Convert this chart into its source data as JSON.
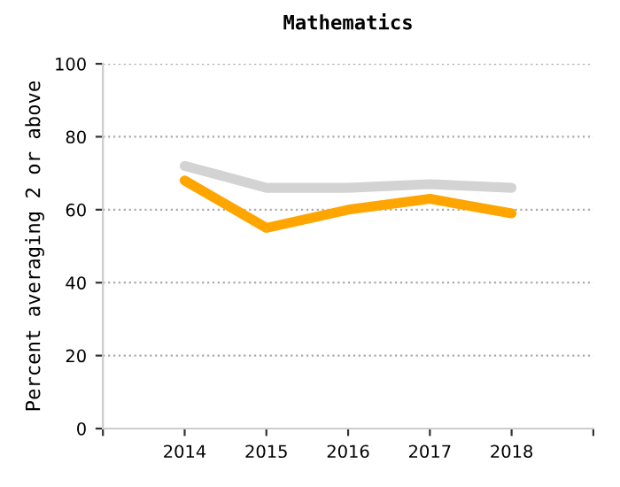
{
  "chart_data": {
    "type": "line",
    "title": "Mathematics",
    "ylabel": "Percent averaging 2 or above",
    "x": [
      2014,
      2015,
      2016,
      2017,
      2018
    ],
    "series": [
      {
        "color": "#d3d3d3",
        "values": [
          72,
          66,
          66,
          67,
          66
        ]
      },
      {
        "color": "#ffa500",
        "values": [
          68,
          55,
          60,
          63,
          59
        ]
      }
    ],
    "xlim": [
      2013,
      2019
    ],
    "xticks": [
      {
        "value": 2013,
        "label": null
      },
      2014,
      2015,
      2016,
      2017,
      2018,
      {
        "value": 2019,
        "label": null
      }
    ],
    "ylim": [
      0,
      100
    ],
    "yticks": [
      0,
      20,
      40,
      60,
      80,
      100
    ],
    "grid": "y",
    "marker": "none",
    "line_style": "solid"
  }
}
